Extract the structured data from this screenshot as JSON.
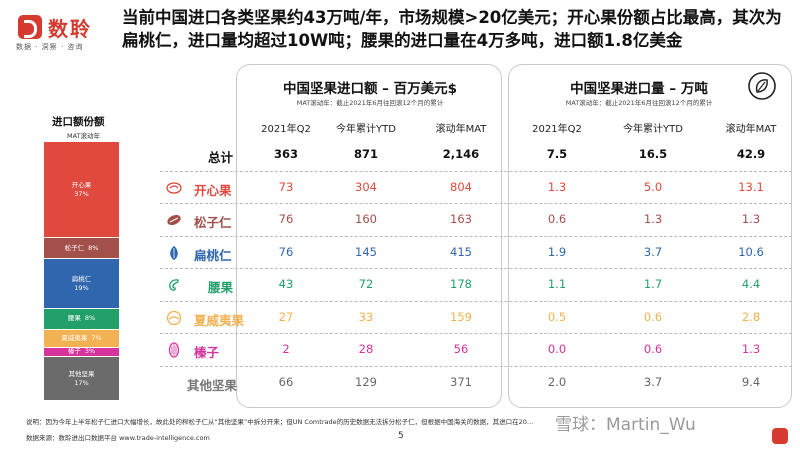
{
  "logo": {
    "name": "数聆",
    "tagline": "数据 · 洞察 · 咨询"
  },
  "headline": "当前中国进口各类坚果约43万吨/年，市场规模>20亿美元；开心果份额占比最高，其次为扁桃仁，进口量均超过10W吨；腰果的进口量在4万多吨，进口额1.8亿美金",
  "share_chart": {
    "title": "进口额份额",
    "subtitle": "MAT滚动年",
    "segments": [
      {
        "label": "开心果",
        "value": "37%",
        "color": "#e0493e"
      },
      {
        "label": "松子仁",
        "value": "8%",
        "color": "#a3504a"
      },
      {
        "label": "扁桃仁",
        "value": "19%",
        "color": "#2f66ad"
      },
      {
        "label": "腰果",
        "value": "8%",
        "color": "#21a06a"
      },
      {
        "label": "夏威夷果",
        "value": "7%",
        "color": "#f2b152"
      },
      {
        "label": "榛子",
        "value": "3%",
        "color": "#d6339c"
      },
      {
        "label": "其他坚果",
        "value": "17%",
        "color": "#6b6b6b"
      }
    ]
  },
  "value_panel": {
    "title": "中国坚果进口额 – 百万美元$",
    "subtitle": "MAT滚动年：截止2021年6月往回滚12个月的累计",
    "columns": [
      "2021年Q2",
      "今年累计YTD",
      "滚动年MAT"
    ]
  },
  "volume_panel": {
    "title": "中国坚果进口量 – 万吨",
    "subtitle": "MAT滚动年：截止2021年6月往回滚12个月的累计",
    "columns": [
      "2021年Q2",
      "今年累计YTD",
      "滚动年MAT"
    ]
  },
  "rows": [
    {
      "label": "总计",
      "icon": "",
      "color": "#111111",
      "value": [
        "363",
        "871",
        "2,146"
      ],
      "volume": [
        "7.5",
        "16.5",
        "42.9"
      ]
    },
    {
      "label": "开心果",
      "icon": "pistachio-icon",
      "color": "#e0493e",
      "value": [
        "73",
        "304",
        "804"
      ],
      "volume": [
        "1.3",
        "5.0",
        "13.1"
      ]
    },
    {
      "label": "松子仁",
      "icon": "pine-nut-icon",
      "color": "#a3504a",
      "value": [
        "76",
        "160",
        "163"
      ],
      "volume": [
        "0.6",
        "1.3",
        "1.3"
      ]
    },
    {
      "label": "扁桃仁",
      "icon": "almond-icon",
      "color": "#2f66ad",
      "value": [
        "76",
        "145",
        "415"
      ],
      "volume": [
        "1.9",
        "3.7",
        "10.6"
      ]
    },
    {
      "label": "腰果",
      "icon": "cashew-icon",
      "color": "#21a06a",
      "value": [
        "43",
        "72",
        "178"
      ],
      "volume": [
        "1.1",
        "1.7",
        "4.4"
      ]
    },
    {
      "label": "夏威夷果",
      "icon": "macadamia-icon",
      "color": "#f2b152",
      "value": [
        "27",
        "33",
        "159"
      ],
      "volume": [
        "0.5",
        "0.6",
        "2.8"
      ]
    },
    {
      "label": "榛子",
      "icon": "hazelnut-icon",
      "color": "#d6339c",
      "value": [
        "2",
        "28",
        "56"
      ],
      "volume": [
        "0.0",
        "0.6",
        "1.3"
      ]
    },
    {
      "label": "其他坚果",
      "icon": "",
      "color": "#6b6b6b",
      "value": [
        "66",
        "129",
        "371"
      ],
      "volume": [
        "2.0",
        "3.7",
        "9.4"
      ]
    }
  ],
  "note": "说明：因为今年上半年松子仁进口大幅增长，故此处的榨松子仁从“其他坚果”中拆分开来；但UN Comtrade的历史数据无法拆分松子仁，但根据中国海关的数据，其进口在20…",
  "source": "数据来源：数聆进出口数据平台 www.trade-intelligence.com",
  "page_number": "5",
  "watermark": "雪球：Martin_Wu"
}
